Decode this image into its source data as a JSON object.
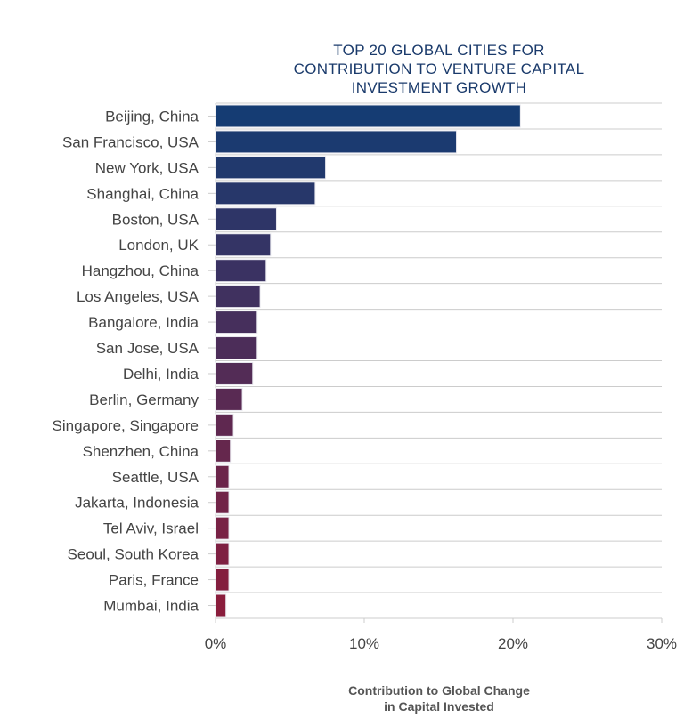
{
  "chart_data": {
    "type": "bar",
    "orientation": "horizontal",
    "title_lines": [
      "TOP 20 GLOBAL CITIES FOR",
      "CONTRIBUTION TO VENTURE CAPITAL",
      "INVESTMENT GROWTH"
    ],
    "xlabel_lines": [
      "Contribution to Global Change",
      "in Capital Invested"
    ],
    "ylabel": "",
    "xlim": [
      0,
      30
    ],
    "x_ticks": [
      0,
      10,
      20,
      30
    ],
    "x_tick_labels": [
      "0%",
      "10%",
      "20%",
      "30%"
    ],
    "grid": "horizontal lines between categories",
    "categories": [
      "Beijing, China",
      "San Francisco, USA",
      "New York, USA",
      "Shanghai, China",
      "Boston, USA",
      "London, UK",
      "Hangzhou, China",
      "Los Angeles, USA",
      "Bangalore, India",
      "San Jose, USA",
      "Delhi, India",
      "Berlin, Germany",
      "Singapore, Singapore",
      "Shenzhen, China",
      "Seattle, USA",
      "Jakarta, Indonesia",
      "Tel Aviv, Israel",
      "Seoul, South Korea",
      "Paris, France",
      "Mumbai, India"
    ],
    "values": [
      20.5,
      16.2,
      7.4,
      6.7,
      4.1,
      3.7,
      3.4,
      3.0,
      2.8,
      2.8,
      2.5,
      1.8,
      1.2,
      1.0,
      0.9,
      0.9,
      0.9,
      0.9,
      0.9,
      0.7
    ],
    "colors": {
      "top": "#153c73",
      "bottom": "#8a1d3c",
      "bar_edge": "#e8e8ee",
      "grid": "#cccccc",
      "text": "#444444",
      "title": "#1a3a6b"
    }
  }
}
